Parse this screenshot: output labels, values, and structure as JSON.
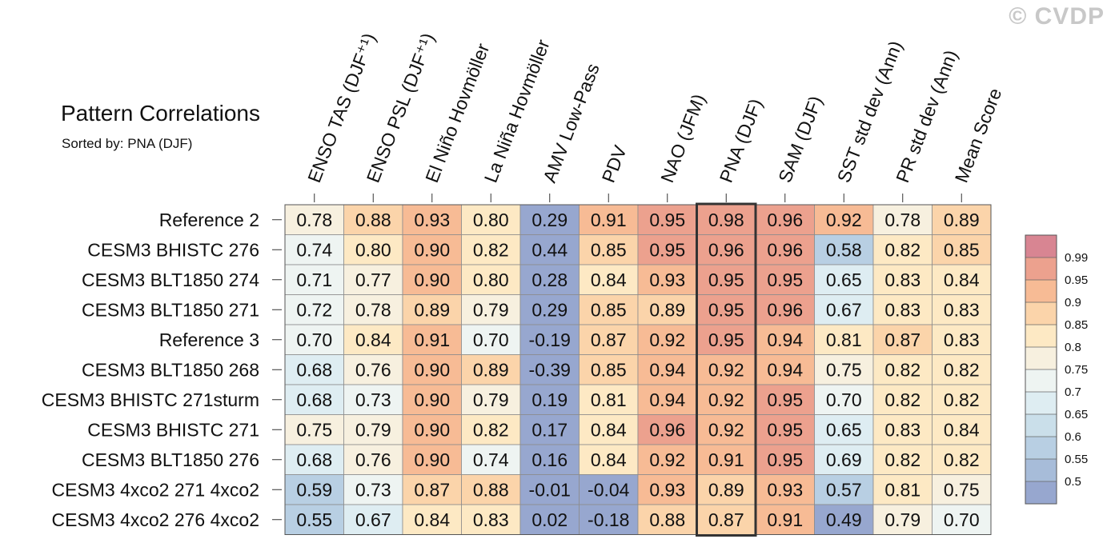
{
  "chart_data": {
    "type": "heatmap",
    "title": "Pattern Correlations",
    "subtitle": "Sorted by: PNA (DJF)",
    "watermark": "© CVDP",
    "columns": [
      "ENSO TAS (DJF⁺¹)",
      "ENSO PSL (DJF⁺¹)",
      "El Niño Hovmöller",
      "La Niña Hovmöller",
      "AMV Low-Pass",
      "PDV",
      "NAO (JFM)",
      "PNA (DJF)",
      "SAM (DJF)",
      "SST std dev (Ann)",
      "PR std dev (Ann)",
      "Mean Score"
    ],
    "highlighted_column": "PNA (DJF)",
    "rows": [
      {
        "name": "Reference 2",
        "values": [
          0.78,
          0.88,
          0.93,
          0.8,
          0.29,
          0.91,
          0.95,
          0.98,
          0.96,
          0.92,
          0.78,
          0.89
        ]
      },
      {
        "name": "CESM3 BHISTC 276",
        "values": [
          0.74,
          0.8,
          0.9,
          0.82,
          0.44,
          0.85,
          0.95,
          0.96,
          0.96,
          0.58,
          0.82,
          0.85
        ]
      },
      {
        "name": "CESM3 BLT1850 274",
        "values": [
          0.71,
          0.77,
          0.9,
          0.8,
          0.28,
          0.84,
          0.93,
          0.95,
          0.95,
          0.65,
          0.83,
          0.84
        ]
      },
      {
        "name": "CESM3 BLT1850 271",
        "values": [
          0.72,
          0.78,
          0.89,
          0.79,
          0.29,
          0.85,
          0.89,
          0.95,
          0.96,
          0.67,
          0.83,
          0.83
        ]
      },
      {
        "name": "Reference 3",
        "values": [
          0.7,
          0.84,
          0.91,
          0.7,
          -0.19,
          0.87,
          0.92,
          0.95,
          0.94,
          0.81,
          0.87,
          0.83
        ]
      },
      {
        "name": "CESM3 BLT1850 268",
        "values": [
          0.68,
          0.76,
          0.9,
          0.89,
          -0.39,
          0.85,
          0.94,
          0.92,
          0.94,
          0.75,
          0.82,
          0.82
        ]
      },
      {
        "name": "CESM3 BHISTC 271sturm",
        "values": [
          0.68,
          0.73,
          0.9,
          0.79,
          0.19,
          0.81,
          0.94,
          0.92,
          0.95,
          0.7,
          0.82,
          0.82
        ]
      },
      {
        "name": "CESM3 BHISTC 271",
        "values": [
          0.75,
          0.79,
          0.9,
          0.82,
          0.17,
          0.84,
          0.96,
          0.92,
          0.95,
          0.65,
          0.83,
          0.84
        ]
      },
      {
        "name": "CESM3 BLT1850 276",
        "values": [
          0.68,
          0.76,
          0.9,
          0.74,
          0.16,
          0.84,
          0.92,
          0.91,
          0.95,
          0.69,
          0.82,
          0.82
        ]
      },
      {
        "name": "CESM3 4xco2 271 4xco2",
        "values": [
          0.59,
          0.73,
          0.87,
          0.88,
          -0.01,
          -0.04,
          0.93,
          0.89,
          0.93,
          0.57,
          0.81,
          0.75
        ]
      },
      {
        "name": "CESM3 4xco2 276 4xco2",
        "values": [
          0.55,
          0.67,
          0.84,
          0.83,
          0.02,
          -0.18,
          0.88,
          0.87,
          0.91,
          0.49,
          0.79,
          0.7
        ]
      }
    ],
    "colorbar": {
      "levels": [
        0.5,
        0.55,
        0.6,
        0.65,
        0.7,
        0.75,
        0.8,
        0.85,
        0.9,
        0.95,
        0.99
      ],
      "labels": [
        "0.5",
        "0.55",
        "0.6",
        "0.65",
        "0.7",
        "0.75",
        "0.8",
        "0.85",
        "0.9",
        "0.95",
        "0.99"
      ],
      "colors": [
        "#97a7cf",
        "#a7bcd9",
        "#b8cfe3",
        "#cadfea",
        "#deedf2",
        "#eef4f2",
        "#f7f0df",
        "#fde9c4",
        "#fbd4aa",
        "#f7bb95",
        "#eca18e",
        "#d88592"
      ]
    },
    "number_format": "2 decimals"
  }
}
